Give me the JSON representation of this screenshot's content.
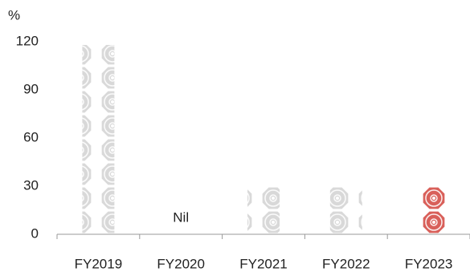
{
  "chart_data": {
    "type": "pictograph-bar",
    "y_label": "%",
    "categories": [
      "FY2019",
      "FY2020",
      "FY2021",
      "FY2022",
      "FY2023"
    ],
    "values": [
      118,
      0,
      30,
      30,
      30
    ],
    "value_labels": [
      null,
      "Nil",
      null,
      null,
      null
    ],
    "colors": [
      "#d9d9d9",
      "#d9d9d9",
      "#d9d9d9",
      "#d9d9d9",
      "#d9605a"
    ],
    "ylim": [
      0,
      120
    ],
    "yticks": [
      0,
      30,
      60,
      90,
      120
    ],
    "grid": false
  }
}
